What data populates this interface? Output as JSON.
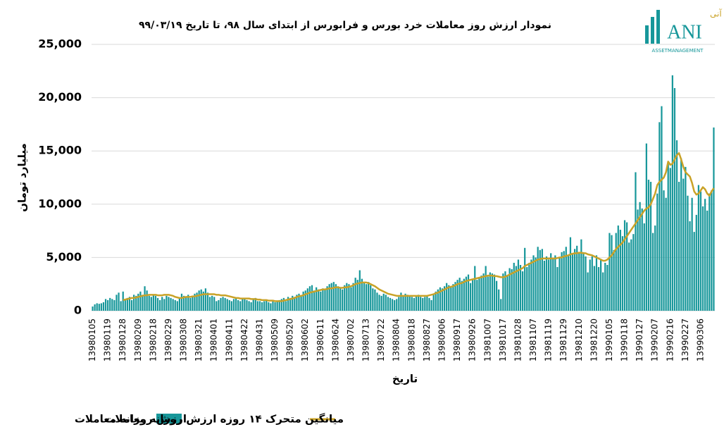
{
  "chart_data": {
    "type": "bar",
    "title": "نمودار ارزش روز معاملات خرد بورس و فرابورس از ابتدای سال ۹۸، تا تاریخ ۹۹/۰۳/۱۹",
    "x_label": "تاریخ",
    "y_label": "میلیارد تومان",
    "categories": [
      "13980105",
      null,
      null,
      null,
      null,
      null,
      null,
      "13980119",
      null,
      null,
      null,
      null,
      null,
      null,
      "13980128",
      null,
      null,
      null,
      null,
      null,
      null,
      "13980209",
      null,
      null,
      null,
      null,
      null,
      null,
      "13980218",
      null,
      null,
      null,
      null,
      null,
      null,
      "13980229",
      null,
      null,
      null,
      null,
      null,
      null,
      "13980308",
      null,
      null,
      null,
      null,
      null,
      null,
      "13980321",
      null,
      null,
      null,
      null,
      null,
      null,
      "13980401",
      null,
      null,
      null,
      null,
      null,
      null,
      "13980411",
      null,
      null,
      null,
      null,
      null,
      null,
      "13980422",
      null,
      null,
      null,
      null,
      null,
      null,
      "13980431",
      null,
      null,
      null,
      null,
      null,
      null,
      "13980509",
      null,
      null,
      null,
      null,
      null,
      null,
      "13980520",
      null,
      null,
      null,
      null,
      null,
      null,
      "13980602",
      null,
      null,
      null,
      null,
      null,
      null,
      "13980611",
      null,
      null,
      null,
      null,
      null,
      null,
      "13980624",
      null,
      null,
      null,
      null,
      null,
      null,
      "13980702",
      null,
      null,
      null,
      null,
      null,
      null,
      "13980713",
      null,
      null,
      null,
      null,
      null,
      null,
      "13980722",
      null,
      null,
      null,
      null,
      null,
      null,
      "13980804",
      null,
      null,
      null,
      null,
      null,
      null,
      "13980818",
      null,
      null,
      null,
      null,
      null,
      null,
      "13980827",
      null,
      null,
      null,
      null,
      null,
      null,
      "13980906",
      null,
      null,
      null,
      null,
      null,
      null,
      "13980917",
      null,
      null,
      null,
      null,
      null,
      null,
      "13980926",
      null,
      null,
      null,
      null,
      null,
      null,
      "13981007",
      null,
      null,
      null,
      null,
      null,
      null,
      "13981017",
      null,
      null,
      null,
      null,
      null,
      null,
      "13981028",
      null,
      null,
      null,
      null,
      null,
      null,
      "13981107",
      null,
      null,
      null,
      null,
      null,
      null,
      "13981119",
      null,
      null,
      null,
      null,
      null,
      null,
      "13981129",
      null,
      null,
      null,
      null,
      null,
      null,
      "13981210",
      null,
      null,
      null,
      null,
      null,
      null,
      "13981220",
      null,
      null,
      null,
      null,
      null,
      null,
      "13990105",
      null,
      null,
      null,
      null,
      null,
      null,
      "13990118",
      null,
      null,
      null,
      null,
      null,
      null,
      "13990127",
      null,
      null,
      null,
      null,
      null,
      null,
      "13990207",
      null,
      null,
      null,
      null,
      null,
      null,
      "13990216",
      null,
      null,
      null,
      null,
      null,
      null,
      "13990227",
      null,
      null,
      null,
      null,
      null,
      null,
      "13990306",
      null,
      null,
      null,
      null,
      null,
      null
    ],
    "series": [
      {
        "name": "ارزش روزانه معاملات",
        "type": "bar",
        "color": "#17979a",
        "values": [
          400,
          600,
          700,
          650,
          700,
          800,
          1100,
          1000,
          1200,
          1100,
          1000,
          1500,
          1700,
          900,
          1800,
          1100,
          1200,
          1300,
          1000,
          1500,
          1400,
          1600,
          1800,
          1500,
          2300,
          1900,
          1400,
          1300,
          1500,
          1400,
          1200,
          1000,
          1300,
          1100,
          1400,
          1300,
          1200,
          1100,
          1000,
          900,
          1200,
          1600,
          1400,
          1300,
          1500,
          1200,
          1400,
          1600,
          1700,
          1900,
          2000,
          1800,
          2100,
          1700,
          1300,
          1400,
          1300,
          900,
          1000,
          1200,
          1300,
          1200,
          1100,
          1000,
          900,
          1100,
          1200,
          1000,
          900,
          1100,
          1200,
          1000,
          900,
          800,
          1100,
          1200,
          900,
          900,
          800,
          900,
          1000,
          800,
          700,
          900,
          800,
          900,
          1000,
          1100,
          1200,
          900,
          1300,
          1200,
          1400,
          1300,
          1500,
          1600,
          1400,
          1800,
          1900,
          2100,
          2300,
          2400,
          1900,
          2200,
          2000,
          1800,
          2100,
          2000,
          2300,
          2500,
          2600,
          2700,
          2500,
          2300,
          2100,
          2000,
          2400,
          2600,
          2500,
          2200,
          2600,
          3100,
          2900,
          3800,
          3000,
          2600,
          2500,
          2700,
          2400,
          2100,
          2000,
          1700,
          1500,
          1400,
          1600,
          1500,
          1300,
          1200,
          1100,
          1000,
          1100,
          1300,
          1700,
          1400,
          1600,
          1500,
          1400,
          1300,
          1200,
          1400,
          1500,
          1300,
          1200,
          1300,
          1400,
          1200,
          1000,
          1500,
          1800,
          2000,
          2200,
          2100,
          2300,
          2600,
          2400,
          2200,
          2500,
          2700,
          2900,
          3100,
          2800,
          3000,
          3200,
          3400,
          2600,
          3000,
          4200,
          2900,
          3100,
          3300,
          3500,
          4200,
          3200,
          3600,
          3500,
          3400,
          2800,
          2000,
          1100,
          3500,
          3700,
          3300,
          4000,
          3900,
          4500,
          4200,
          4800,
          4300,
          3700,
          5900,
          4100,
          4500,
          4800,
          5200,
          5000,
          6000,
          5700,
          5800,
          4700,
          5100,
          4800,
          5400,
          4900,
          5200,
          4100,
          5000,
          5500,
          5600,
          6000,
          5200,
          6900,
          5300,
          5800,
          6100,
          5400,
          6700,
          5500,
          5100,
          3600,
          4800,
          5100,
          4200,
          5200,
          4100,
          4800,
          3600,
          4500,
          4300,
          7300,
          7100,
          5700,
          7300,
          8000,
          7600,
          7000,
          8500,
          8300,
          6400,
          6700,
          7200,
          13000,
          9500,
          10200,
          9600,
          8200,
          15700,
          12300,
          12100,
          7300,
          8000,
          11000,
          17700,
          19200,
          11300,
          10600,
          13900,
          13400,
          22100,
          20900,
          16000,
          12100,
          14300,
          12400,
          13500,
          10800,
          8400,
          10600,
          7400,
          9000,
          11800,
          11200,
          9800,
          10500,
          9400,
          11000,
          11300,
          17200
        ]
      },
      {
        "name": "میانگین متحرک ۱۴ روزه ارزش روزانه معاملات",
        "type": "line",
        "color": "#c9a227",
        "values": [
          null,
          null,
          null,
          null,
          null,
          null,
          null,
          null,
          null,
          null,
          null,
          null,
          null,
          null,
          1000,
          1050,
          1100,
          1150,
          1200,
          1200,
          1250,
          1300,
          1350,
          1400,
          1450,
          1450,
          1500,
          1500,
          1500,
          1500,
          1450,
          1450,
          1450,
          1500,
          1500,
          1500,
          1450,
          1400,
          1300,
          1250,
          1200,
          1200,
          1250,
          1300,
          1300,
          1300,
          1350,
          1350,
          1400,
          1450,
          1500,
          1550,
          1550,
          1550,
          1550,
          1550,
          1550,
          1500,
          1500,
          1450,
          1450,
          1450,
          1400,
          1350,
          1300,
          1250,
          1200,
          1200,
          1150,
          1150,
          1150,
          1150,
          1150,
          1100,
          1100,
          1100,
          1050,
          1050,
          1000,
          1000,
          1000,
          950,
          950,
          950,
          900,
          900,
          900,
          900,
          950,
          1000,
          1050,
          1100,
          1150,
          1200,
          1300,
          1350,
          1400,
          1450,
          1550,
          1600,
          1700,
          1750,
          1800,
          1850,
          1900,
          1950,
          2000,
          2000,
          2050,
          2100,
          2100,
          2150,
          2200,
          2200,
          2150,
          2150,
          2200,
          2200,
          2250,
          2300,
          2400,
          2500,
          2550,
          2600,
          2650,
          2650,
          2650,
          2600,
          2500,
          2400,
          2300,
          2150,
          2000,
          1900,
          1800,
          1700,
          1600,
          1550,
          1500,
          1450,
          1400,
          1400,
          1400,
          1400,
          1400,
          1400,
          1400,
          1400,
          1400,
          1400,
          1400,
          1400,
          1400,
          1400,
          1400,
          1450,
          1500,
          1550,
          1650,
          1700,
          1800,
          1900,
          2000,
          2100,
          2200,
          2250,
          2300,
          2400,
          2500,
          2550,
          2600,
          2700,
          2800,
          2850,
          2900,
          2950,
          3000,
          3050,
          3100,
          3150,
          3200,
          3250,
          3300,
          3300,
          3300,
          3250,
          3250,
          3200,
          3150,
          3150,
          3200,
          3300,
          3400,
          3500,
          3600,
          3700,
          3800,
          3900,
          4000,
          4200,
          4300,
          4400,
          4500,
          4600,
          4700,
          4800,
          4850,
          4900,
          4900,
          4900,
          4900,
          4900,
          4900,
          4900,
          4950,
          5000,
          5000,
          5100,
          5150,
          5200,
          5300,
          5350,
          5400,
          5400,
          5450,
          5450,
          5400,
          5400,
          5300,
          5250,
          5200,
          5100,
          5000,
          4900,
          4800,
          4700,
          4700,
          4800,
          5000,
          5200,
          5500,
          5800,
          6000,
          6200,
          6400,
          6700,
          7000,
          7300,
          7600,
          7900,
          8200,
          8500,
          8800,
          9100,
          9400,
          9600,
          9700,
          10000,
          10500,
          11000,
          11800,
          12100,
          12300,
          12500,
          13000,
          14000,
          13700,
          13800,
          14200,
          14600,
          14800,
          14200,
          13500,
          13000,
          12800,
          12600,
          12000,
          11200,
          10900,
          11000,
          11300,
          11600,
          11400,
          11000,
          10800,
          11200,
          11500
        ]
      }
    ],
    "ylim": [
      0,
      25000
    ],
    "yticks": [
      0,
      {
        "value": 5000,
        "label": "5,000"
      },
      {
        "value": 10000,
        "label": "10,000"
      },
      {
        "value": 15000,
        "label": "15,000"
      },
      {
        "value": 20000,
        "label": "20,000"
      },
      {
        "value": 25000,
        "label": "25,000"
      }
    ],
    "grid": true,
    "legend": "bottom"
  },
  "logo": {
    "brand": "سبدگردان آنی",
    "mark": "ANI",
    "tagline": "ASSETMANAGEMENT"
  }
}
